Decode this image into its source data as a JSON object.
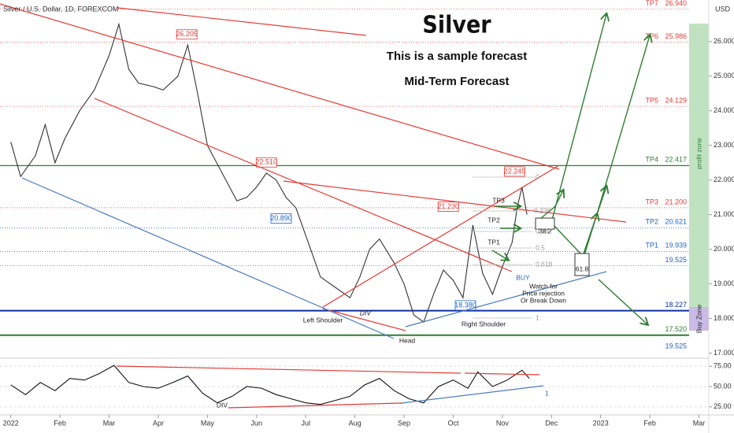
{
  "chart_data": [
    {
      "type": "line",
      "title": "Silver",
      "subtitle": "This is a sample forecast",
      "subtitle2": "Mid-Term Forecast",
      "symbol": "Silver / U.S. Dollar, 1D, FOREXCOM",
      "y_unit": "USD",
      "xlim": [
        -0.22,
        14.2
      ],
      "xticks": [
        {
          "value": 0,
          "label": "2022"
        },
        {
          "value": 1,
          "label": "Feb"
        },
        {
          "value": 2,
          "label": "Mar"
        },
        {
          "value": 3,
          "label": "Apr"
        },
        {
          "value": 4,
          "label": "May"
        },
        {
          "value": 5,
          "label": "Jun"
        },
        {
          "value": 6,
          "label": "Jul"
        },
        {
          "value": 7,
          "label": "Aug"
        },
        {
          "value": 8,
          "label": "Sep"
        },
        {
          "value": 9,
          "label": "Oct"
        },
        {
          "value": 10,
          "label": "Nov"
        },
        {
          "value": 11,
          "label": "Dec"
        },
        {
          "value": 12,
          "label": "2023"
        },
        {
          "value": 13,
          "label": "Feb"
        },
        {
          "value": 14,
          "label": "Mar"
        }
      ],
      "ylim": [
        16.9,
        27.2
      ],
      "yticks": [
        {
          "value": 17,
          "label": "17.000"
        },
        {
          "value": 18,
          "label": "18.000"
        },
        {
          "value": 19,
          "label": "19.000"
        },
        {
          "value": 20,
          "label": "20.000"
        },
        {
          "value": 21,
          "label": "21.000"
        },
        {
          "value": 22,
          "label": "22.000"
        },
        {
          "value": 23,
          "label": "23.000"
        },
        {
          "value": 24,
          "label": "24.000"
        },
        {
          "value": 25,
          "label": "25.000"
        },
        {
          "value": 26,
          "label": "26.000"
        }
      ],
      "series": [
        {
          "color": "#333333",
          "x": [
            0,
            0.2,
            0.5,
            0.7,
            0.9,
            1.1,
            1.4,
            1.7,
            2.0,
            2.2,
            2.4,
            2.6,
            2.9,
            3.1,
            3.4,
            3.6,
            3.8,
            4.0,
            4.3,
            4.6,
            4.8,
            5.0,
            5.2,
            5.4,
            5.6,
            5.8,
            6.0,
            6.3,
            6.6,
            6.9,
            7.1,
            7.3,
            7.5,
            7.8,
            8.0,
            8.2,
            8.4,
            8.6,
            8.8,
            9.0,
            9.2,
            9.4,
            9.6,
            9.8,
            10.0,
            10.2,
            10.3,
            10.4,
            10.5
          ],
          "values": [
            23.1,
            22.1,
            22.7,
            23.6,
            22.5,
            23.2,
            24.0,
            24.6,
            25.6,
            26.5,
            25.2,
            24.8,
            24.7,
            24.6,
            25.0,
            25.9,
            24.5,
            23.0,
            22.2,
            21.4,
            21.5,
            21.8,
            22.2,
            22.0,
            21.5,
            21.2,
            20.4,
            19.2,
            18.9,
            18.6,
            19.2,
            20.0,
            20.3,
            19.6,
            19.0,
            18.1,
            17.9,
            18.7,
            19.4,
            19.1,
            18.6,
            20.7,
            19.3,
            18.7,
            19.5,
            20.2,
            21.2,
            21.8,
            21.0
          ]
        }
      ],
      "levels": [
        {
          "name": "TP7",
          "value": 26.94,
          "value_label": "26.940",
          "color": "#e53935"
        },
        {
          "name": "TP6",
          "value": 25.986,
          "value_label": "25.986",
          "color": "#e53935"
        },
        {
          "name": "TP5",
          "value": 24.129,
          "value_label": "24.129",
          "color": "#e53935"
        },
        {
          "name": "TP4",
          "value": 22.417,
          "value_label": "22.417",
          "color": "#2e7d32"
        },
        {
          "name": "TP3",
          "value": 21.2,
          "value_label": "21.200",
          "color": "#e53935"
        },
        {
          "name": "TP2",
          "value": 20.621,
          "value_label": "20.621",
          "color": "#1e63c8"
        },
        {
          "name": "TP1",
          "value": 19.939,
          "value_label": "19.939",
          "color": "#1e63c8"
        },
        {
          "value": 19.525,
          "value_label": "19.525",
          "color": "#1e63c8"
        },
        {
          "value": 18.227,
          "value_label": "18.227",
          "color": "#0d2fa0"
        },
        {
          "value": 17.52,
          "value_label": "17.520",
          "color": "#2e7d32"
        }
      ],
      "price_tags": [
        {
          "x": 3.58,
          "value": 26.205,
          "label": "26.205",
          "color": "#e53935"
        },
        {
          "x": 5.2,
          "value": 22.51,
          "label": "22.510",
          "color": "#e53935"
        },
        {
          "x": 5.5,
          "value": 20.89,
          "label": "20.890",
          "color": "#1e63c8"
        },
        {
          "x": 8.9,
          "value": 21.23,
          "label": "21.230",
          "color": "#e53935"
        },
        {
          "x": 10.25,
          "value": 22.245,
          "label": "22.245",
          "color": "#e53935"
        },
        {
          "x": 9.25,
          "value": 18.38,
          "label": "18.380",
          "color": "#1e63c8"
        }
      ],
      "annotations": {
        "left_shoulder": "Left Shoulder",
        "head": "Head",
        "right_shoulder": "Right Shoulder",
        "div": "DIV",
        "buy": "BUY",
        "watch": [
          "Watch for",
          "Price rejection",
          "Or Break Down"
        ],
        "profit_zone": "profit zone",
        "buy_zone": "Buy Zone",
        "tp1": "TP1",
        "tp2": "TP2",
        "tp3": "TP3",
        "box1": "38.2",
        "box2": "61.8",
        "extra_level": "19.525",
        "fib": [
          "0",
          "0.236",
          "0.382",
          "0.5",
          "0.618",
          "1"
        ]
      }
    },
    {
      "type": "line",
      "ylim": [
        20,
        80
      ],
      "yticks": [
        {
          "value": 25,
          "label": "25.00"
        },
        {
          "value": 50,
          "label": "50.00"
        },
        {
          "value": 75,
          "label": "75.00"
        }
      ],
      "series": [
        {
          "color": "#111111",
          "x": [
            0,
            0.3,
            0.6,
            0.9,
            1.2,
            1.5,
            1.8,
            2.1,
            2.4,
            2.7,
            3.0,
            3.3,
            3.6,
            3.9,
            4.2,
            4.5,
            4.8,
            5.1,
            5.4,
            5.7,
            6.0,
            6.3,
            6.6,
            6.9,
            7.2,
            7.5,
            7.8,
            8.1,
            8.4,
            8.7,
            9.0,
            9.3,
            9.5,
            9.8,
            10.1,
            10.4,
            10.55
          ],
          "values": [
            52,
            40,
            55,
            45,
            60,
            58,
            66,
            76,
            55,
            50,
            48,
            55,
            63,
            42,
            30,
            38,
            50,
            48,
            40,
            35,
            30,
            28,
            33,
            38,
            52,
            60,
            45,
            35,
            30,
            50,
            58,
            48,
            68,
            50,
            58,
            70,
            60
          ]
        }
      ],
      "annotations": {
        "div": "DIV",
        "one": "1"
      }
    }
  ]
}
